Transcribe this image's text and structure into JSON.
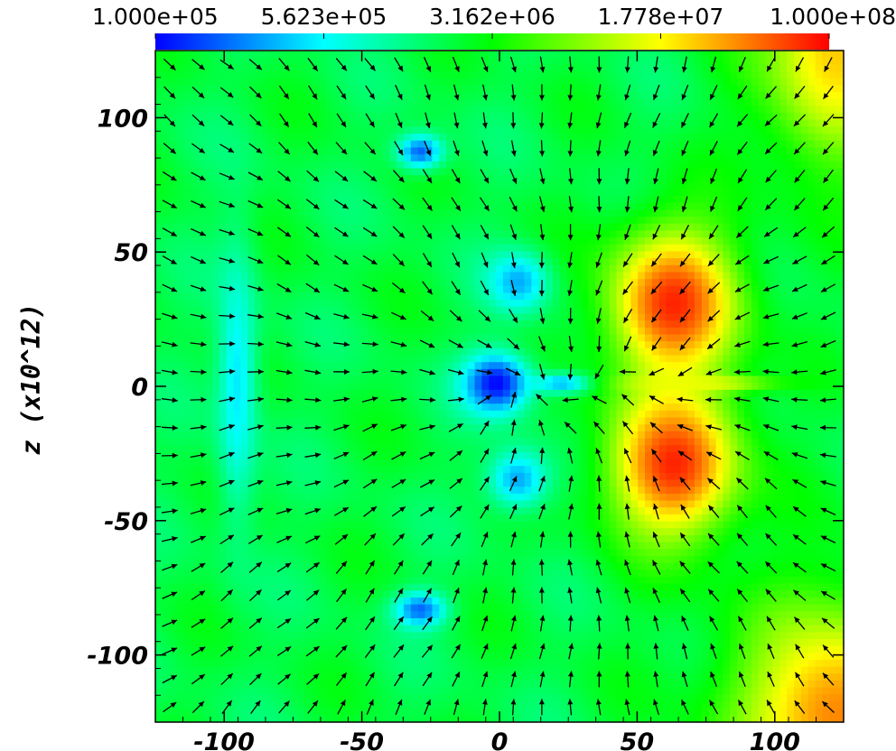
{
  "chart_data": {
    "type": "heatmap",
    "title": "",
    "xlabel": "",
    "ylabel": "z  (x10^12)",
    "xlim": [
      -125,
      125
    ],
    "ylim": [
      -125,
      125
    ],
    "x_ticks": [
      -100,
      -50,
      0,
      50,
      100
    ],
    "y_ticks": [
      100,
      50,
      0,
      -50,
      -100
    ],
    "x_tick_labels": [
      "-100",
      "-50",
      "0",
      "50",
      "100"
    ],
    "y_tick_labels": [
      "100",
      "50",
      "0",
      "-50",
      "-100"
    ],
    "colorbar": {
      "position": "top",
      "scale": "log",
      "range": [
        100000,
        100000000
      ],
      "tick_values": [
        100000,
        562300,
        3162000,
        17780000,
        100000000
      ],
      "tick_labels": [
        "1.000e+05",
        "5.623e+05",
        "3.162e+06",
        "1.778e+07",
        "1.000e+08"
      ],
      "colormap": [
        "#0000ff",
        "#00ffff",
        "#00ff00",
        "#ffff00",
        "#ff0000"
      ]
    },
    "field": {
      "background_log10": 6.3,
      "features": [
        {
          "feature": "central core",
          "x": 0,
          "z": 0,
          "rx": 13,
          "rz": 12,
          "log10": 5.0
        },
        {
          "feature": "left vertical filament",
          "x": -95,
          "z": 0,
          "rx": 8,
          "rz": 55,
          "log10": 5.7
        },
        {
          "feature": "upper clump",
          "x": -28,
          "z": 87,
          "rx": 9,
          "rz": 7,
          "log10": 5.3
        },
        {
          "feature": "lower clump",
          "x": -28,
          "z": -85,
          "rx": 10,
          "rz": 7,
          "log10": 5.3
        },
        {
          "feature": "upper inner lobe",
          "x": 8,
          "z": 38,
          "rx": 12,
          "rz": 12,
          "log10": 5.5
        },
        {
          "feature": "lower inner lobe",
          "x": 8,
          "z": -36,
          "rx": 12,
          "rz": 12,
          "log10": 5.5
        },
        {
          "feature": "right inner jet",
          "x": 25,
          "z": 0,
          "rx": 12,
          "rz": 4,
          "log10": 5.4
        },
        {
          "feature": "hot upper lobe",
          "x": 65,
          "z": 30,
          "rx": 25,
          "rz": 30,
          "log10": 7.9
        },
        {
          "feature": "hot lower lobe",
          "x": 65,
          "z": -30,
          "rx": 25,
          "rz": 30,
          "log10": 7.9
        },
        {
          "feature": "equatorial jet",
          "x": 75,
          "z": 0,
          "rx": 28,
          "rz": 3,
          "log10": 7.2
        },
        {
          "feature": "upper-right corner",
          "x": 125,
          "z": 125,
          "rx": 30,
          "rz": 45,
          "log10": 7.4
        },
        {
          "feature": "lower-right corner",
          "x": 125,
          "z": -125,
          "rx": 40,
          "rz": 45,
          "log10": 7.6
        }
      ]
    },
    "vector_field": {
      "grid_spacing": 10.4,
      "sources": [
        {
          "x": 0,
          "z": 0,
          "strength": 1
        },
        {
          "x": 65,
          "z": 0,
          "strength": 0.7
        }
      ]
    }
  }
}
